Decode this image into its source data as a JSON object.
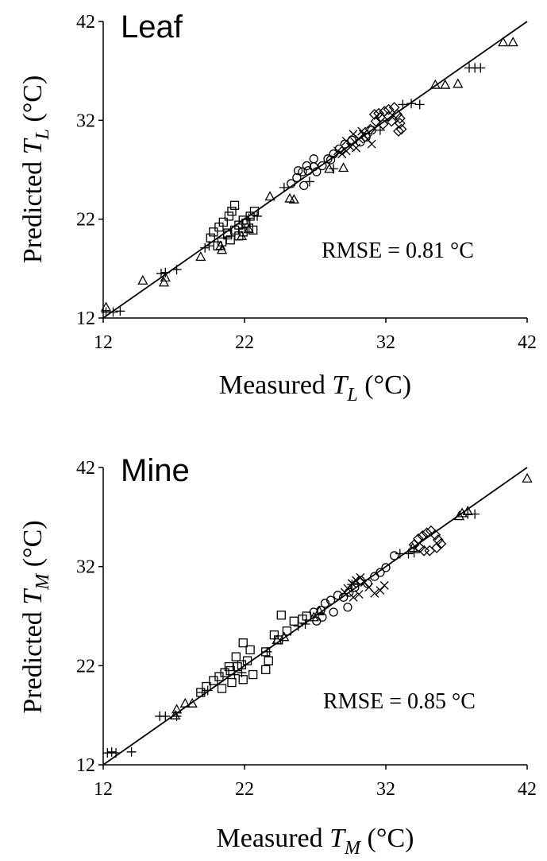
{
  "chart_data": [
    {
      "type": "scatter",
      "title": "Leaf",
      "xlabel": {
        "prefix": "Measured ",
        "var": "T",
        "sub": "L",
        "suffix": " (°C)"
      },
      "ylabel": {
        "prefix": "Predicted ",
        "var": "T",
        "sub": "L",
        "suffix": " (°C)"
      },
      "annotation": "RMSE = 0.81 °C",
      "xlim": [
        12,
        42
      ],
      "ylim": [
        12,
        42
      ],
      "ticks": [
        12,
        22,
        32,
        42
      ],
      "grid": false,
      "reference_line": [
        [
          12,
          12
        ],
        [
          42,
          42
        ]
      ],
      "series": [
        {
          "marker": "triangle",
          "points": [
            [
              12.2,
              13.1
            ],
            [
              14.8,
              15.8
            ],
            [
              16.3,
              15.6
            ],
            [
              16.4,
              16.1
            ],
            [
              18.9,
              18.2
            ],
            [
              20.3,
              19.3
            ],
            [
              20.4,
              18.9
            ],
            [
              21.8,
              20.3
            ],
            [
              22.3,
              21.0
            ],
            [
              23.8,
              24.3
            ],
            [
              25.2,
              24.1
            ],
            [
              25.5,
              24.0
            ],
            [
              28.0,
              27.1
            ],
            [
              29.0,
              27.2
            ],
            [
              35.5,
              35.6
            ],
            [
              36.2,
              35.6
            ],
            [
              37.1,
              35.7
            ],
            [
              40.3,
              39.9
            ],
            [
              41.0,
              39.9
            ]
          ]
        },
        {
          "marker": "plus",
          "points": [
            [
              12.2,
              12.6
            ],
            [
              12.7,
              12.6
            ],
            [
              13.2,
              12.7
            ],
            [
              16.1,
              16.5
            ],
            [
              16.4,
              16.6
            ],
            [
              17.2,
              16.9
            ],
            [
              19.2,
              19.1
            ],
            [
              19.5,
              19.3
            ],
            [
              22.3,
              22.1
            ],
            [
              22.9,
              22.3
            ],
            [
              24.8,
              25.2
            ],
            [
              26.6,
              25.8
            ],
            [
              28.3,
              27.1
            ],
            [
              31.6,
              31.0
            ],
            [
              33.2,
              33.6
            ],
            [
              33.8,
              33.7
            ],
            [
              34.4,
              33.6
            ],
            [
              37.9,
              37.3
            ],
            [
              38.3,
              37.3
            ],
            [
              38.7,
              37.3
            ]
          ]
        },
        {
          "marker": "square",
          "points": [
            [
              19.6,
              20.1
            ],
            [
              19.8,
              20.7
            ],
            [
              20.2,
              21.2
            ],
            [
              20.5,
              21.7
            ],
            [
              20.9,
              22.3
            ],
            [
              21.1,
              22.8
            ],
            [
              21.3,
              23.4
            ],
            [
              20.4,
              19.7
            ],
            [
              21.0,
              19.9
            ],
            [
              21.6,
              20.3
            ],
            [
              21.9,
              20.7
            ],
            [
              22.3,
              21.1
            ],
            [
              21.6,
              21.4
            ],
            [
              22.1,
              21.6
            ],
            [
              20.8,
              20.6
            ],
            [
              21.3,
              20.9
            ],
            [
              22.6,
              20.9
            ],
            [
              20.1,
              19.3
            ],
            [
              20.8,
              20.4
            ],
            [
              21.9,
              21.9
            ],
            [
              22.4,
              22.3
            ],
            [
              22.7,
              22.8
            ]
          ]
        },
        {
          "marker": "circle",
          "points": [
            [
              25.3,
              25.6
            ],
            [
              25.7,
              26.2
            ],
            [
              26.1,
              26.8
            ],
            [
              26.5,
              26.9
            ],
            [
              26.9,
              27.3
            ],
            [
              27.1,
              26.8
            ],
            [
              27.5,
              27.4
            ],
            [
              27.9,
              28.1
            ],
            [
              28.3,
              28.6
            ],
            [
              28.7,
              29.1
            ],
            [
              29.1,
              29.6
            ],
            [
              29.6,
              30.0
            ],
            [
              30.2,
              29.8
            ],
            [
              30.6,
              30.3
            ],
            [
              31.0,
              31.0
            ],
            [
              25.8,
              26.9
            ],
            [
              26.4,
              27.4
            ],
            [
              26.9,
              28.1
            ],
            [
              28.1,
              28.0
            ],
            [
              26.2,
              25.4
            ]
          ]
        },
        {
          "marker": "x",
          "points": [
            [
              28.9,
              28.6
            ],
            [
              29.2,
              28.9
            ],
            [
              29.5,
              29.3
            ],
            [
              29.8,
              29.8
            ],
            [
              30.1,
              30.1
            ],
            [
              30.4,
              30.6
            ],
            [
              29.2,
              29.9
            ],
            [
              29.9,
              29.2
            ],
            [
              30.7,
              30.1
            ],
            [
              31.0,
              29.6
            ],
            [
              30.3,
              30.9
            ],
            [
              28.6,
              28.9
            ],
            [
              29.7,
              30.6
            ]
          ]
        },
        {
          "marker": "diamond",
          "points": [
            [
              30.9,
              31.1
            ],
            [
              31.3,
              31.9
            ],
            [
              31.6,
              32.3
            ],
            [
              31.9,
              32.9
            ],
            [
              32.2,
              33.1
            ],
            [
              32.6,
              33.3
            ],
            [
              32.8,
              32.6
            ],
            [
              31.8,
              31.6
            ],
            [
              32.4,
              31.9
            ],
            [
              33.0,
              31.7
            ],
            [
              33.1,
              31.1
            ],
            [
              32.9,
              30.9
            ],
            [
              31.5,
              32.7
            ],
            [
              32.2,
              32.4
            ],
            [
              31.2,
              32.6
            ],
            [
              33.0,
              32.2
            ]
          ]
        }
      ]
    },
    {
      "type": "scatter",
      "title": "Mine",
      "xlabel": {
        "prefix": "Measured ",
        "var": "T",
        "sub": "M",
        "suffix": " (°C)"
      },
      "ylabel": {
        "prefix": "Predicted ",
        "var": "T",
        "sub": "M",
        "suffix": " (°C)"
      },
      "annotation": "RMSE = 0.85 °C",
      "xlim": [
        12,
        42
      ],
      "ylim": [
        12,
        42
      ],
      "ticks": [
        12,
        22,
        32,
        42
      ],
      "grid": false,
      "reference_line": [
        [
          12,
          12
        ],
        [
          42,
          42
        ]
      ],
      "series": [
        {
          "marker": "triangle",
          "points": [
            [
              17.2,
              17.6
            ],
            [
              17.8,
              18.2
            ],
            [
              18.3,
              18.2
            ],
            [
              17.1,
              17.0
            ],
            [
              24.3,
              24.6
            ],
            [
              24.8,
              24.9
            ],
            [
              26.9,
              26.9
            ],
            [
              27.3,
              27.5
            ],
            [
              33.9,
              33.9
            ],
            [
              37.2,
              37.1
            ],
            [
              37.4,
              37.4
            ],
            [
              37.8,
              37.6
            ],
            [
              42.0,
              40.9
            ]
          ]
        },
        {
          "marker": "plus",
          "points": [
            [
              12.3,
              13.2
            ],
            [
              12.6,
              13.3
            ],
            [
              12.9,
              13.2
            ],
            [
              14.0,
              13.3
            ],
            [
              16.0,
              16.9
            ],
            [
              16.4,
              16.9
            ],
            [
              17.2,
              16.9
            ],
            [
              19.0,
              19.3
            ],
            [
              19.4,
              19.5
            ],
            [
              21.3,
              21.1
            ],
            [
              21.8,
              21.3
            ],
            [
              23.6,
              23.4
            ],
            [
              25.8,
              26.0
            ],
            [
              26.3,
              26.2
            ],
            [
              29.6,
              30.2
            ],
            [
              33.0,
              33.3
            ],
            [
              33.6,
              33.3
            ],
            [
              34.0,
              33.4
            ],
            [
              37.8,
              37.3
            ],
            [
              38.3,
              37.3
            ]
          ]
        },
        {
          "marker": "square",
          "points": [
            [
              18.9,
              19.3
            ],
            [
              19.3,
              19.9
            ],
            [
              19.8,
              20.5
            ],
            [
              20.2,
              20.9
            ],
            [
              20.6,
              21.3
            ],
            [
              21.0,
              21.5
            ],
            [
              21.5,
              21.9
            ],
            [
              21.8,
              22.1
            ],
            [
              22.2,
              22.5
            ],
            [
              20.4,
              19.7
            ],
            [
              21.1,
              20.3
            ],
            [
              21.9,
              20.6
            ],
            [
              22.6,
              21.1
            ],
            [
              23.5,
              21.6
            ],
            [
              23.7,
              22.5
            ],
            [
              23.5,
              23.4
            ],
            [
              22.4,
              23.6
            ],
            [
              21.9,
              24.3
            ],
            [
              24.1,
              25.1
            ],
            [
              24.4,
              24.6
            ],
            [
              25.0,
              25.5
            ],
            [
              25.5,
              26.5
            ],
            [
              24.6,
              27.1
            ],
            [
              26.1,
              26.7
            ],
            [
              26.4,
              27.0
            ],
            [
              21.4,
              22.9
            ],
            [
              20.9,
              21.9
            ]
          ]
        },
        {
          "marker": "circle",
          "points": [
            [
              26.9,
              27.4
            ],
            [
              27.4,
              27.6
            ],
            [
              27.7,
              28.3
            ],
            [
              28.1,
              28.6
            ],
            [
              28.6,
              29.1
            ],
            [
              29.0,
              28.9
            ],
            [
              29.4,
              29.4
            ],
            [
              29.8,
              29.9
            ],
            [
              30.2,
              30.6
            ],
            [
              30.7,
              30.3
            ],
            [
              31.2,
              31.0
            ],
            [
              31.6,
              31.4
            ],
            [
              32.0,
              31.9
            ],
            [
              32.6,
              33.1
            ],
            [
              27.1,
              26.5
            ],
            [
              27.5,
              26.9
            ],
            [
              28.3,
              27.4
            ],
            [
              29.3,
              27.9
            ]
          ]
        },
        {
          "marker": "x",
          "points": [
            [
              29.1,
              29.4
            ],
            [
              29.3,
              29.8
            ],
            [
              29.6,
              30.3
            ],
            [
              29.9,
              30.6
            ],
            [
              30.2,
              30.9
            ],
            [
              30.5,
              30.4
            ],
            [
              30.8,
              29.9
            ],
            [
              31.2,
              29.3
            ],
            [
              31.6,
              29.6
            ],
            [
              31.9,
              30.1
            ],
            [
              29.7,
              28.9
            ],
            [
              30.1,
              29.2
            ]
          ]
        },
        {
          "marker": "diamond",
          "points": [
            [
              34.0,
              34.2
            ],
            [
              34.3,
              34.8
            ],
            [
              34.6,
              35.1
            ],
            [
              34.9,
              35.4
            ],
            [
              35.2,
              35.6
            ],
            [
              35.5,
              35.2
            ],
            [
              35.7,
              34.7
            ],
            [
              35.9,
              34.3
            ],
            [
              35.6,
              33.9
            ],
            [
              35.1,
              33.6
            ],
            [
              34.7,
              33.6
            ],
            [
              34.4,
              33.9
            ]
          ]
        }
      ]
    }
  ]
}
